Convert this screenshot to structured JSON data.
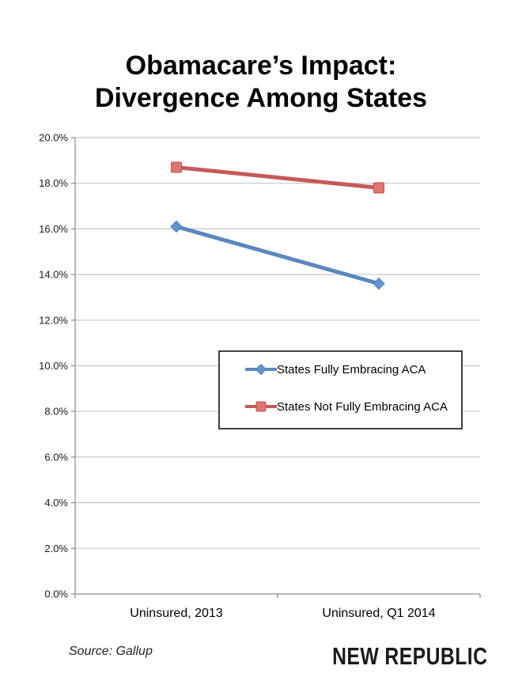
{
  "title": {
    "line1": "Obamacare’s Impact:",
    "line2": "Divergence Among States"
  },
  "chart_data": {
    "type": "line",
    "title": "Obamacare’s Impact: Divergence Among States",
    "categories": [
      "Uninsured, 2013",
      "Uninsured, Q1 2014"
    ],
    "series": [
      {
        "name": "States Fully Embracing ACA",
        "values": [
          16.1,
          13.6
        ],
        "color": "#5b87bd",
        "marker": "diamond",
        "marker_fill": "#6494cd",
        "marker_stroke": "#4f81bd"
      },
      {
        "name": "States Not Fully Embracing ACA",
        "values": [
          18.7,
          17.8
        ],
        "color": "#c55a58",
        "marker": "square",
        "marker_fill": "#dd7672",
        "marker_stroke": "#b84e4b"
      }
    ],
    "xlabel": "",
    "ylabel": "",
    "ylim": [
      0,
      20
    ],
    "ytick_step": 2,
    "ytick_suffix": "%",
    "ytick_decimals": 1,
    "grid": true,
    "gridline_color": "#c8c8c8",
    "axis_color": "#8c8c8c",
    "legend_position": "inside-middle-right"
  },
  "footer": {
    "source": "Source: Gallup",
    "brand": "NEW REPUBLIC"
  }
}
